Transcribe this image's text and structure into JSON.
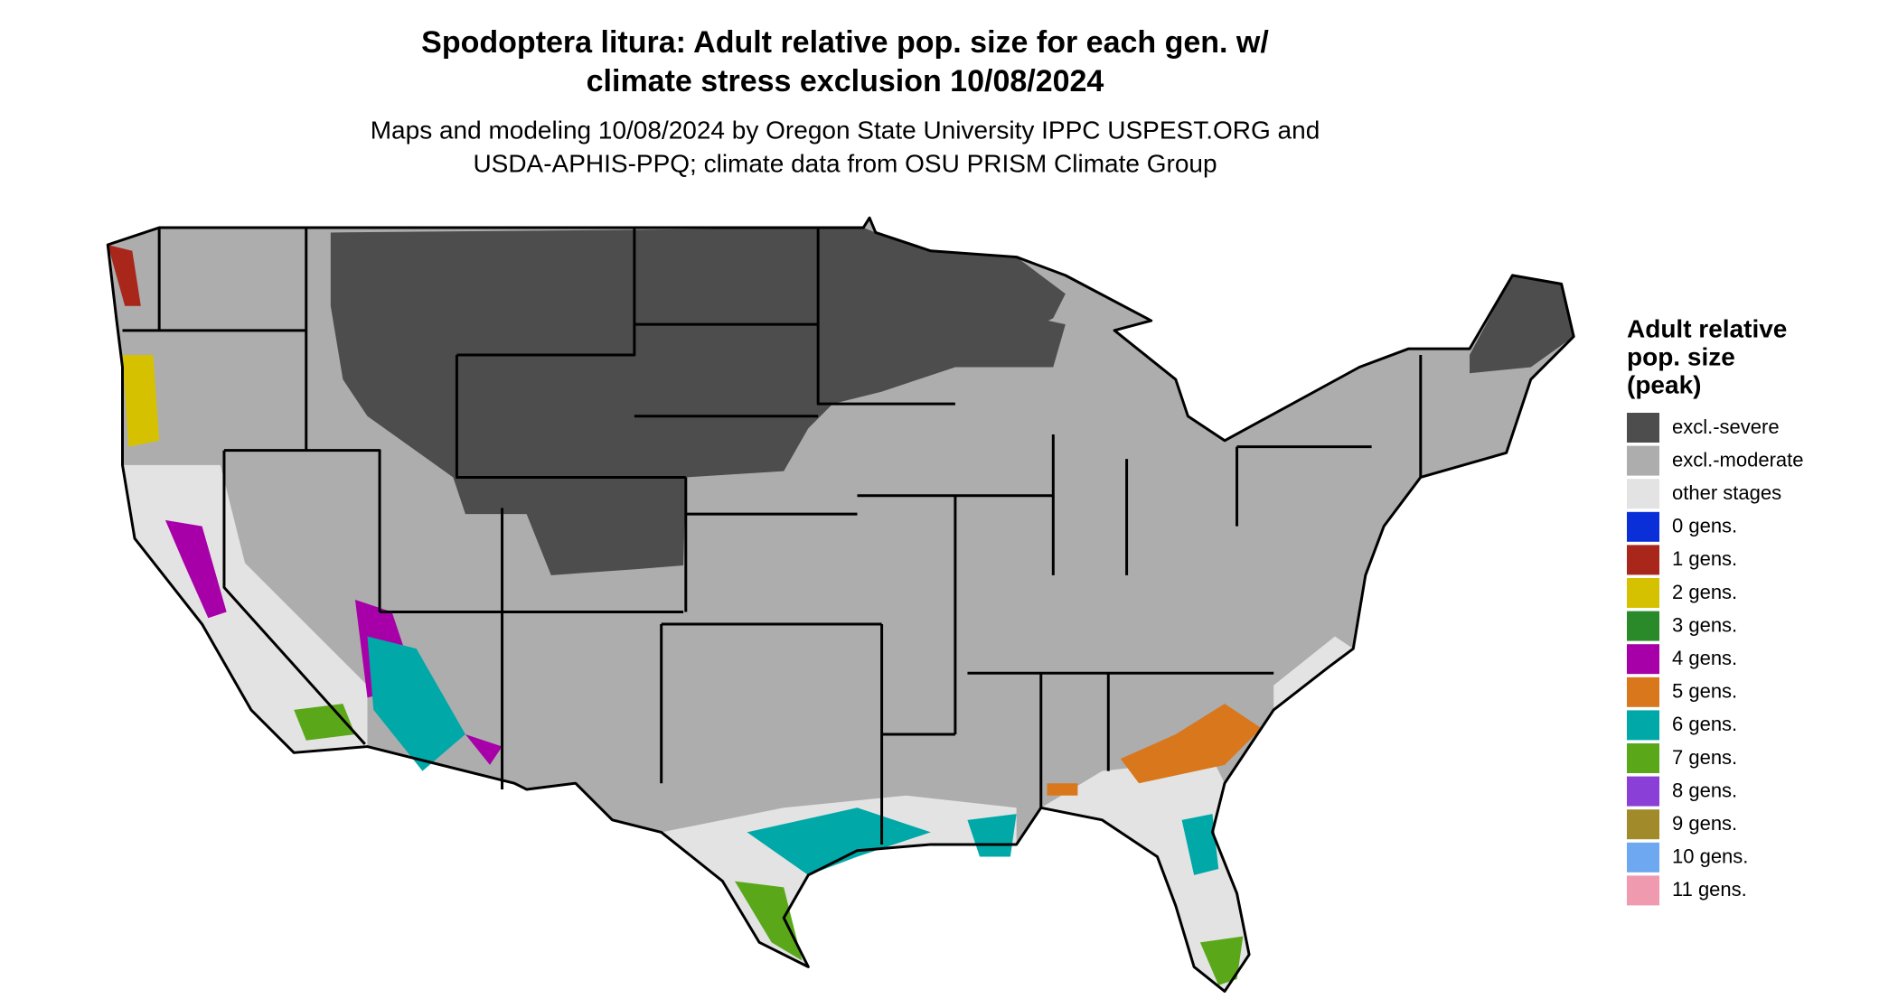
{
  "header": {
    "title": [
      "Spodoptera litura: Adult relative pop. size for each gen. w/",
      "climate stress exclusion 10/08/2024"
    ],
    "subtitle": [
      "Maps and modeling 10/08/2024 by Oregon State University IPPC USPEST.ORG and",
      "USDA-APHIS-PPQ; climate data from OSU PRISM Climate Group"
    ]
  },
  "legend": {
    "title": [
      "Adult relative",
      "pop. size",
      "(peak)"
    ],
    "items": [
      {
        "label": "excl.-severe",
        "color": "#4d4d4d"
      },
      {
        "label": "excl.-moderate",
        "color": "#adadad"
      },
      {
        "label": "other stages",
        "color": "#e3e3e3"
      },
      {
        "label": "0 gens.",
        "color": "#0a2fd8"
      },
      {
        "label": "1 gens.",
        "color": "#a8261a"
      },
      {
        "label": "2 gens.",
        "color": "#d6c100"
      },
      {
        "label": "3 gens.",
        "color": "#2a8a2a"
      },
      {
        "label": "4 gens.",
        "color": "#a800a8"
      },
      {
        "label": "5 gens.",
        "color": "#d9771c"
      },
      {
        "label": "6 gens.",
        "color": "#00a8a8"
      },
      {
        "label": "7 gens.",
        "color": "#5aa81a"
      },
      {
        "label": "8 gens.",
        "color": "#8a3fd6"
      },
      {
        "label": "9 gens.",
        "color": "#a08a2a"
      },
      {
        "label": "10 gens.",
        "color": "#6ea8f0"
      },
      {
        "label": "11 gens.",
        "color": "#f09ab0"
      }
    ]
  }
}
